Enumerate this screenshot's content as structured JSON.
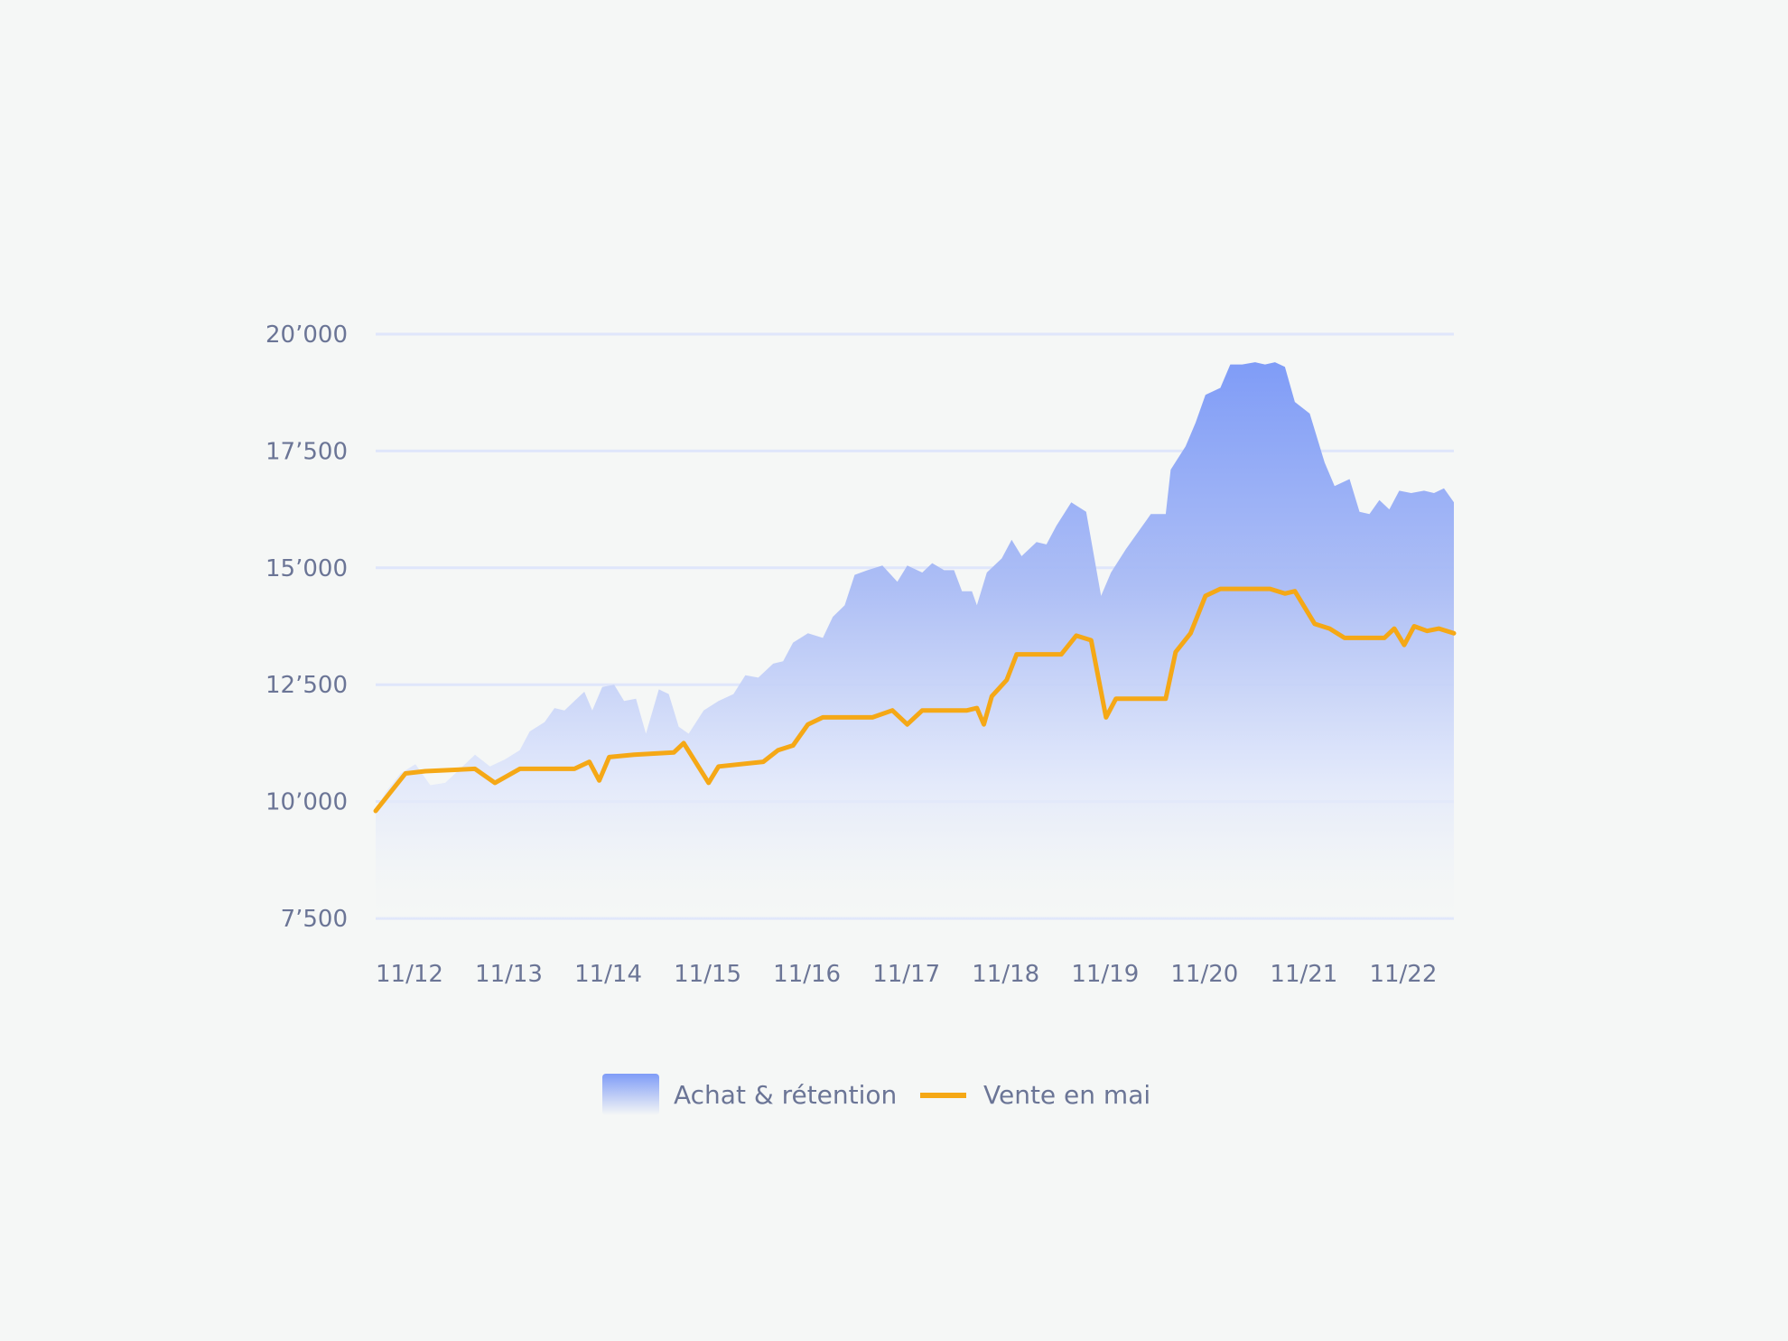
{
  "chart_data": {
    "type": "area",
    "title": "",
    "xlabel": "",
    "ylabel": "",
    "xlim": [
      2012.0,
      2022.85
    ],
    "ylim": [
      7500,
      20000
    ],
    "grid": true,
    "legend_position": "bottom-center",
    "y_ticks": [
      {
        "value": 7500,
        "label": "7’500"
      },
      {
        "value": 10000,
        "label": "10’000"
      },
      {
        "value": 12500,
        "label": "12’500"
      },
      {
        "value": 15000,
        "label": "15’000"
      },
      {
        "value": 17500,
        "label": "17’500"
      },
      {
        "value": 20000,
        "label": "20’000"
      }
    ],
    "x_ticks": [
      {
        "value": 2012,
        "label": "11/12"
      },
      {
        "value": 2013,
        "label": "11/13"
      },
      {
        "value": 2014,
        "label": "11/14"
      },
      {
        "value": 2015,
        "label": "11/15"
      },
      {
        "value": 2016,
        "label": "11/16"
      },
      {
        "value": 2017,
        "label": "11/17"
      },
      {
        "value": 2018,
        "label": "11/18"
      },
      {
        "value": 2019,
        "label": "11/19"
      },
      {
        "value": 2020,
        "label": "11/20"
      },
      {
        "value": 2021,
        "label": "11/21"
      },
      {
        "value": 2022,
        "label": "11/22"
      }
    ],
    "series": [
      {
        "name": "Achat & rétention",
        "type": "area",
        "color_top": "#7f9cf7",
        "color_bottom": "#f3f5fb",
        "points": [
          [
            2012.0,
            9800
          ],
          [
            2012.1,
            10200
          ],
          [
            2012.25,
            10600
          ],
          [
            2012.4,
            10800
          ],
          [
            2012.55,
            10350
          ],
          [
            2012.7,
            10400
          ],
          [
            2012.85,
            10700
          ],
          [
            2013.0,
            11000
          ],
          [
            2013.15,
            10750
          ],
          [
            2013.3,
            10900
          ],
          [
            2013.45,
            11100
          ],
          [
            2013.55,
            11500
          ],
          [
            2013.7,
            11700
          ],
          [
            2013.8,
            12000
          ],
          [
            2013.9,
            11950
          ],
          [
            2014.0,
            12150
          ],
          [
            2014.1,
            12350
          ],
          [
            2014.18,
            11950
          ],
          [
            2014.28,
            12450
          ],
          [
            2014.4,
            12500
          ],
          [
            2014.5,
            12150
          ],
          [
            2014.62,
            12200
          ],
          [
            2014.72,
            11450
          ],
          [
            2014.85,
            12400
          ],
          [
            2014.95,
            12300
          ],
          [
            2015.05,
            11600
          ],
          [
            2015.15,
            11450
          ],
          [
            2015.3,
            11950
          ],
          [
            2015.45,
            12150
          ],
          [
            2015.6,
            12300
          ],
          [
            2015.72,
            12700
          ],
          [
            2015.85,
            12650
          ],
          [
            2016.0,
            12950
          ],
          [
            2016.1,
            13000
          ],
          [
            2016.2,
            13400
          ],
          [
            2016.35,
            13600
          ],
          [
            2016.5,
            13500
          ],
          [
            2016.6,
            13950
          ],
          [
            2016.72,
            14200
          ],
          [
            2016.82,
            14850
          ],
          [
            2016.95,
            14950
          ],
          [
            2017.1,
            15050
          ],
          [
            2017.25,
            14700
          ],
          [
            2017.35,
            15050
          ],
          [
            2017.5,
            14900
          ],
          [
            2017.6,
            15100
          ],
          [
            2017.72,
            14950
          ],
          [
            2017.82,
            14950
          ],
          [
            2017.9,
            14500
          ],
          [
            2018.0,
            14500
          ],
          [
            2018.05,
            14200
          ],
          [
            2018.15,
            14900
          ],
          [
            2018.3,
            15200
          ],
          [
            2018.4,
            15600
          ],
          [
            2018.5,
            15250
          ],
          [
            2018.65,
            15550
          ],
          [
            2018.75,
            15500
          ],
          [
            2018.85,
            15900
          ],
          [
            2019.0,
            16400
          ],
          [
            2019.15,
            16200
          ],
          [
            2019.3,
            14400
          ],
          [
            2019.4,
            14900
          ],
          [
            2019.55,
            15400
          ],
          [
            2019.7,
            15850
          ],
          [
            2019.8,
            16150
          ],
          [
            2019.95,
            16150
          ],
          [
            2020.0,
            17100
          ],
          [
            2020.15,
            17600
          ],
          [
            2020.25,
            18100
          ],
          [
            2020.35,
            18700
          ],
          [
            2020.5,
            18850
          ],
          [
            2020.6,
            19350
          ],
          [
            2020.72,
            19350
          ],
          [
            2020.85,
            19400
          ],
          [
            2020.95,
            19350
          ],
          [
            2021.05,
            19400
          ],
          [
            2021.15,
            19300
          ],
          [
            2021.25,
            18550
          ],
          [
            2021.4,
            18300
          ],
          [
            2021.55,
            17250
          ],
          [
            2021.65,
            16750
          ],
          [
            2021.8,
            16900
          ],
          [
            2021.9,
            16200
          ],
          [
            2022.0,
            16150
          ],
          [
            2022.1,
            16450
          ],
          [
            2022.2,
            16250
          ],
          [
            2022.3,
            16650
          ],
          [
            2022.42,
            16600
          ],
          [
            2022.55,
            16650
          ],
          [
            2022.65,
            16600
          ],
          [
            2022.75,
            16700
          ],
          [
            2022.85,
            16400
          ]
        ]
      },
      {
        "name": "Vente en mai",
        "type": "line",
        "color": "#f5a816",
        "points": [
          [
            2012.0,
            9800
          ],
          [
            2012.15,
            10200
          ],
          [
            2012.3,
            10600
          ],
          [
            2012.5,
            10650
          ],
          [
            2013.0,
            10700
          ],
          [
            2013.2,
            10400
          ],
          [
            2013.45,
            10700
          ],
          [
            2014.0,
            10700
          ],
          [
            2014.15,
            10850
          ],
          [
            2014.25,
            10450
          ],
          [
            2014.35,
            10950
          ],
          [
            2014.6,
            11000
          ],
          [
            2015.0,
            11050
          ],
          [
            2015.1,
            11250
          ],
          [
            2015.35,
            10400
          ],
          [
            2015.45,
            10750
          ],
          [
            2015.9,
            10850
          ],
          [
            2016.05,
            11100
          ],
          [
            2016.2,
            11200
          ],
          [
            2016.35,
            11650
          ],
          [
            2016.5,
            11800
          ],
          [
            2016.8,
            11800
          ],
          [
            2017.0,
            11800
          ],
          [
            2017.2,
            11950
          ],
          [
            2017.35,
            11650
          ],
          [
            2017.5,
            11950
          ],
          [
            2017.75,
            11950
          ],
          [
            2017.95,
            11950
          ],
          [
            2018.05,
            12000
          ],
          [
            2018.12,
            11650
          ],
          [
            2018.2,
            12250
          ],
          [
            2018.35,
            12600
          ],
          [
            2018.45,
            13150
          ],
          [
            2018.65,
            13150
          ],
          [
            2018.9,
            13150
          ],
          [
            2019.05,
            13550
          ],
          [
            2019.2,
            13450
          ],
          [
            2019.35,
            11800
          ],
          [
            2019.45,
            12200
          ],
          [
            2019.65,
            12200
          ],
          [
            2019.95,
            12200
          ],
          [
            2020.05,
            13200
          ],
          [
            2020.2,
            13600
          ],
          [
            2020.35,
            14400
          ],
          [
            2020.5,
            14550
          ],
          [
            2020.8,
            14550
          ],
          [
            2021.0,
            14550
          ],
          [
            2021.15,
            14450
          ],
          [
            2021.25,
            14500
          ],
          [
            2021.45,
            13800
          ],
          [
            2021.6,
            13700
          ],
          [
            2021.75,
            13500
          ],
          [
            2022.0,
            13500
          ],
          [
            2022.15,
            13500
          ],
          [
            2022.25,
            13700
          ],
          [
            2022.35,
            13350
          ],
          [
            2022.45,
            13750
          ],
          [
            2022.58,
            13650
          ],
          [
            2022.7,
            13700
          ],
          [
            2022.85,
            13600
          ]
        ]
      }
    ]
  }
}
